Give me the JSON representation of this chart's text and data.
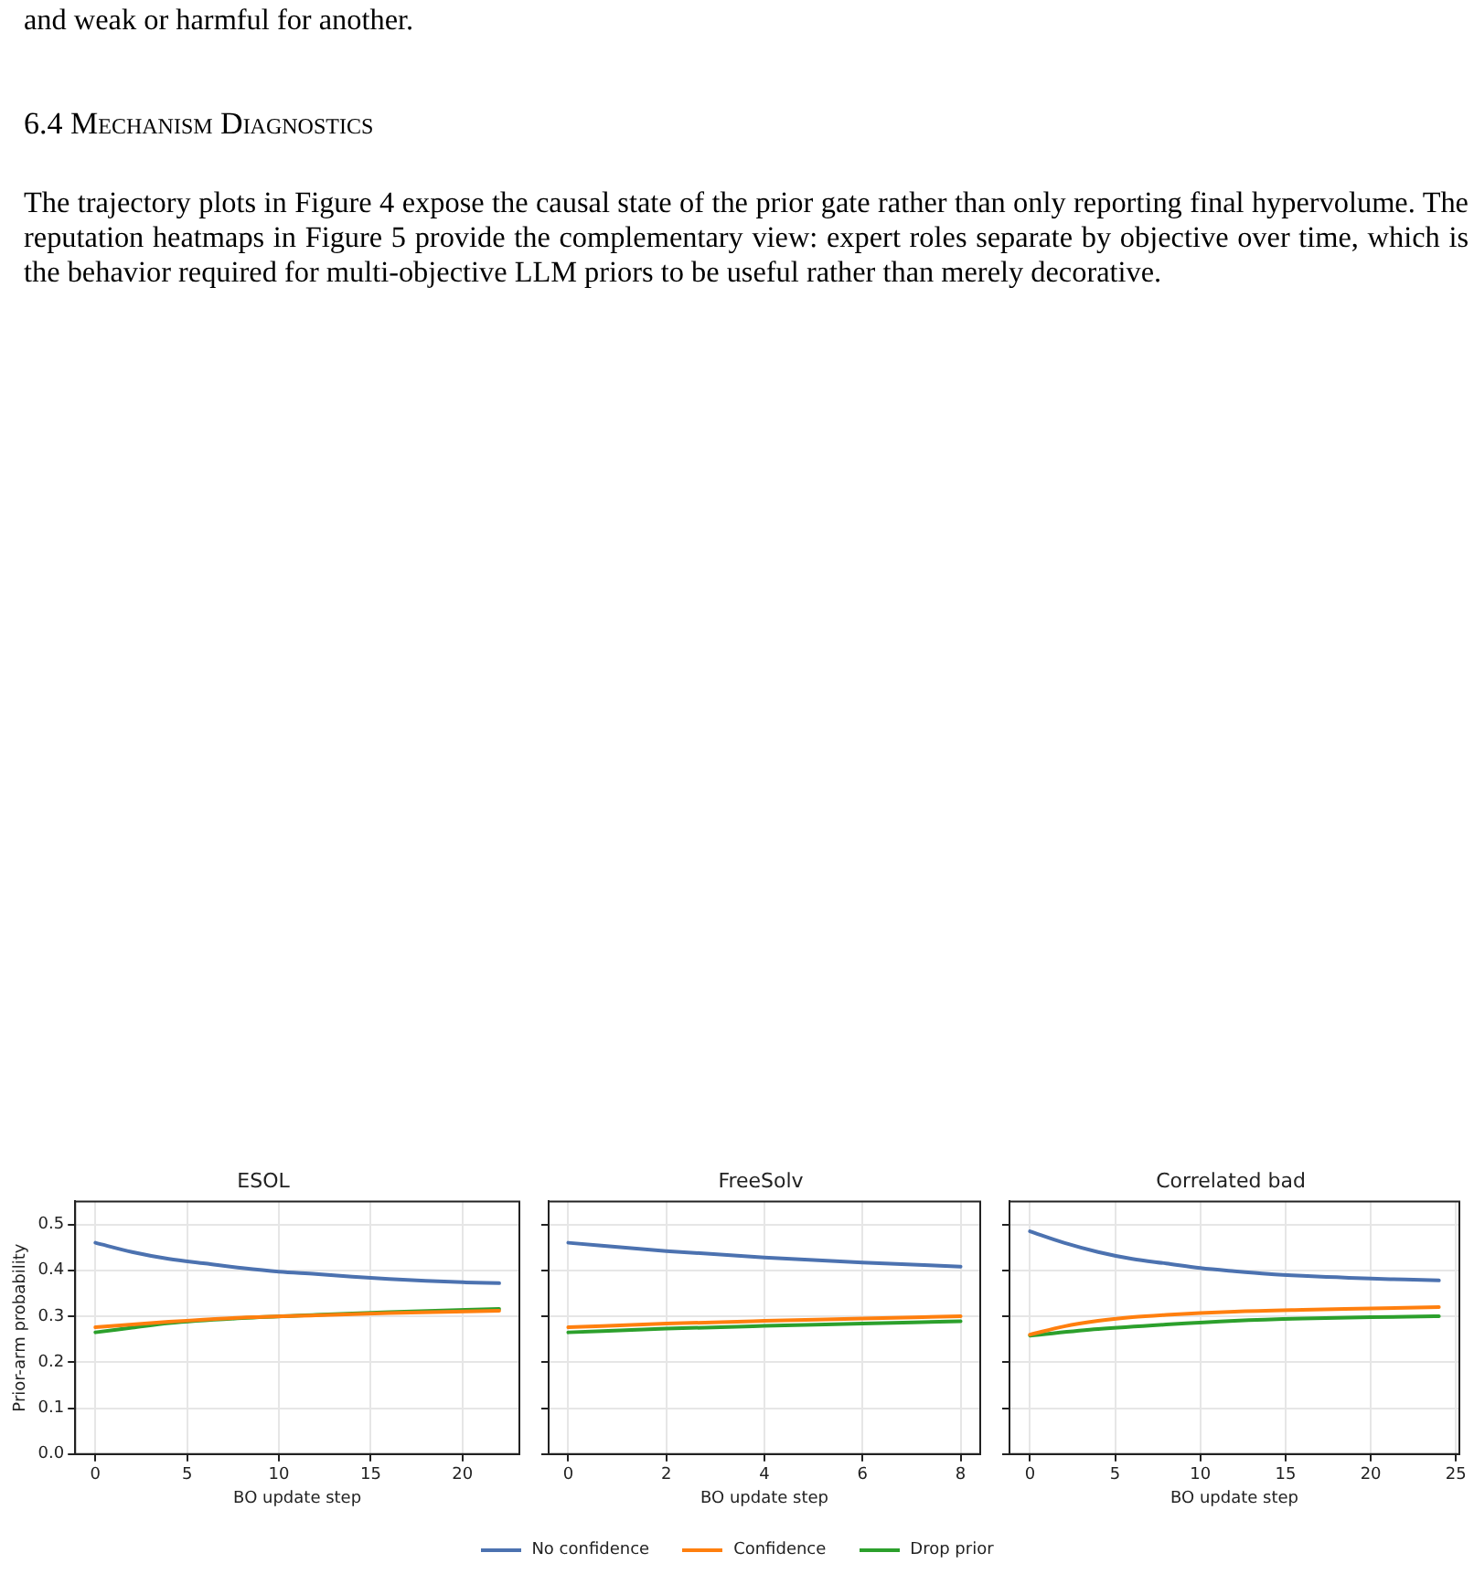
{
  "chart_data": [
    {
      "type": "line",
      "title": "ESOL",
      "xlabel": "BO update step",
      "ylabel": "Prior-arm probability",
      "annotations": [
        "and weak or harmful for another.",
        "6.4 Mechanism Diagnostics",
        "The trajectory plots in Figure 4 expose the causal state of the prior gate rather than only reporting final hypervolume. The reputation heatmaps in Figure 5 provide the complementary view: expert roles separate by objective over time, which is the behavior required for multi-objective LLM priors to be useful rather than merely decorative."
      ],
      "xlim": [
        -1.1,
        23.1
      ],
      "xticks": [
        0,
        5,
        10,
        15,
        20
      ],
      "ylim": [
        0,
        0.55
      ],
      "yticks": [
        {
          "value": 0,
          "label": "0.0"
        },
        0.1,
        0.2,
        0.3,
        0.4,
        0.5
      ],
      "grid": true,
      "legend": false,
      "marker": "none",
      "line_style": "solid",
      "series": [
        {
          "color": "#4c72b0",
          "x": [
            0,
            2,
            4,
            6,
            8,
            10,
            12,
            14,
            16,
            18,
            20,
            22
          ],
          "values": [
            0.46,
            0.44,
            0.425,
            0.415,
            0.405,
            0.397,
            0.392,
            0.386,
            0.381,
            0.377,
            0.374,
            0.372
          ]
        },
        {
          "color": "#ff7f0e",
          "x": [
            0,
            4,
            8,
            12,
            16,
            22
          ],
          "values": [
            0.276,
            0.288,
            0.297,
            0.302,
            0.307,
            0.312
          ]
        },
        {
          "color": "#2ca02c",
          "x": [
            0,
            2,
            4,
            8,
            12,
            16,
            22
          ],
          "values": [
            0.265,
            0.275,
            0.285,
            0.296,
            0.303,
            0.309,
            0.316
          ]
        }
      ]
    },
    {
      "type": "line",
      "title": "FreeSolv",
      "xlabel": "BO update step",
      "xlim": [
        -0.4,
        8.4
      ],
      "xticks": [
        0,
        2,
        4,
        6,
        8
      ],
      "ylim": [
        0,
        0.55
      ],
      "yticks": [
        0.0,
        0.1,
        0.2,
        0.3,
        0.4,
        0.5
      ],
      "tick_labels": "x",
      "grid": true,
      "legend": "bottom",
      "marker": "none",
      "line_style": "solid",
      "series": [
        {
          "name": "No confidence",
          "color": "#4c72b0",
          "x": [
            0,
            2,
            4,
            6,
            8
          ],
          "values": [
            0.46,
            0.442,
            0.428,
            0.417,
            0.408
          ]
        },
        {
          "name": "Confidence",
          "color": "#ff7f0e",
          "x": [
            0,
            2,
            4,
            6,
            8
          ],
          "values": [
            0.276,
            0.284,
            0.29,
            0.295,
            0.3
          ]
        },
        {
          "name": "Drop prior",
          "color": "#2ca02c",
          "x": [
            0,
            2,
            4,
            6,
            8
          ],
          "values": [
            0.265,
            0.273,
            0.279,
            0.284,
            0.289
          ]
        }
      ]
    },
    {
      "type": "line",
      "title": "Correlated bad",
      "xlabel": "BO update step",
      "xlim": [
        -1.2,
        25.2
      ],
      "xticks": [
        0,
        5,
        10,
        15,
        20,
        25
      ],
      "ylim": [
        0,
        0.55
      ],
      "yticks": [
        0.0,
        0.1,
        0.2,
        0.3,
        0.4,
        0.5
      ],
      "tick_labels": "x",
      "grid": true,
      "legend": false,
      "marker": "none",
      "line_style": "solid",
      "series": [
        {
          "color": "#4c72b0",
          "x": [
            0,
            2,
            4,
            6,
            8,
            10,
            12,
            14,
            16,
            18,
            20,
            22,
            24
          ],
          "values": [
            0.485,
            0.46,
            0.44,
            0.425,
            0.415,
            0.405,
            0.398,
            0.392,
            0.388,
            0.385,
            0.382,
            0.38,
            0.378
          ]
        },
        {
          "color": "#ff7f0e",
          "x": [
            0,
            2,
            4,
            6,
            8,
            12,
            16,
            20,
            24
          ],
          "values": [
            0.26,
            0.278,
            0.29,
            0.298,
            0.303,
            0.31,
            0.314,
            0.317,
            0.32
          ]
        },
        {
          "color": "#2ca02c",
          "x": [
            0,
            4,
            8,
            12,
            16,
            20,
            24
          ],
          "values": [
            0.258,
            0.272,
            0.282,
            0.29,
            0.295,
            0.298,
            0.3
          ]
        }
      ]
    }
  ]
}
